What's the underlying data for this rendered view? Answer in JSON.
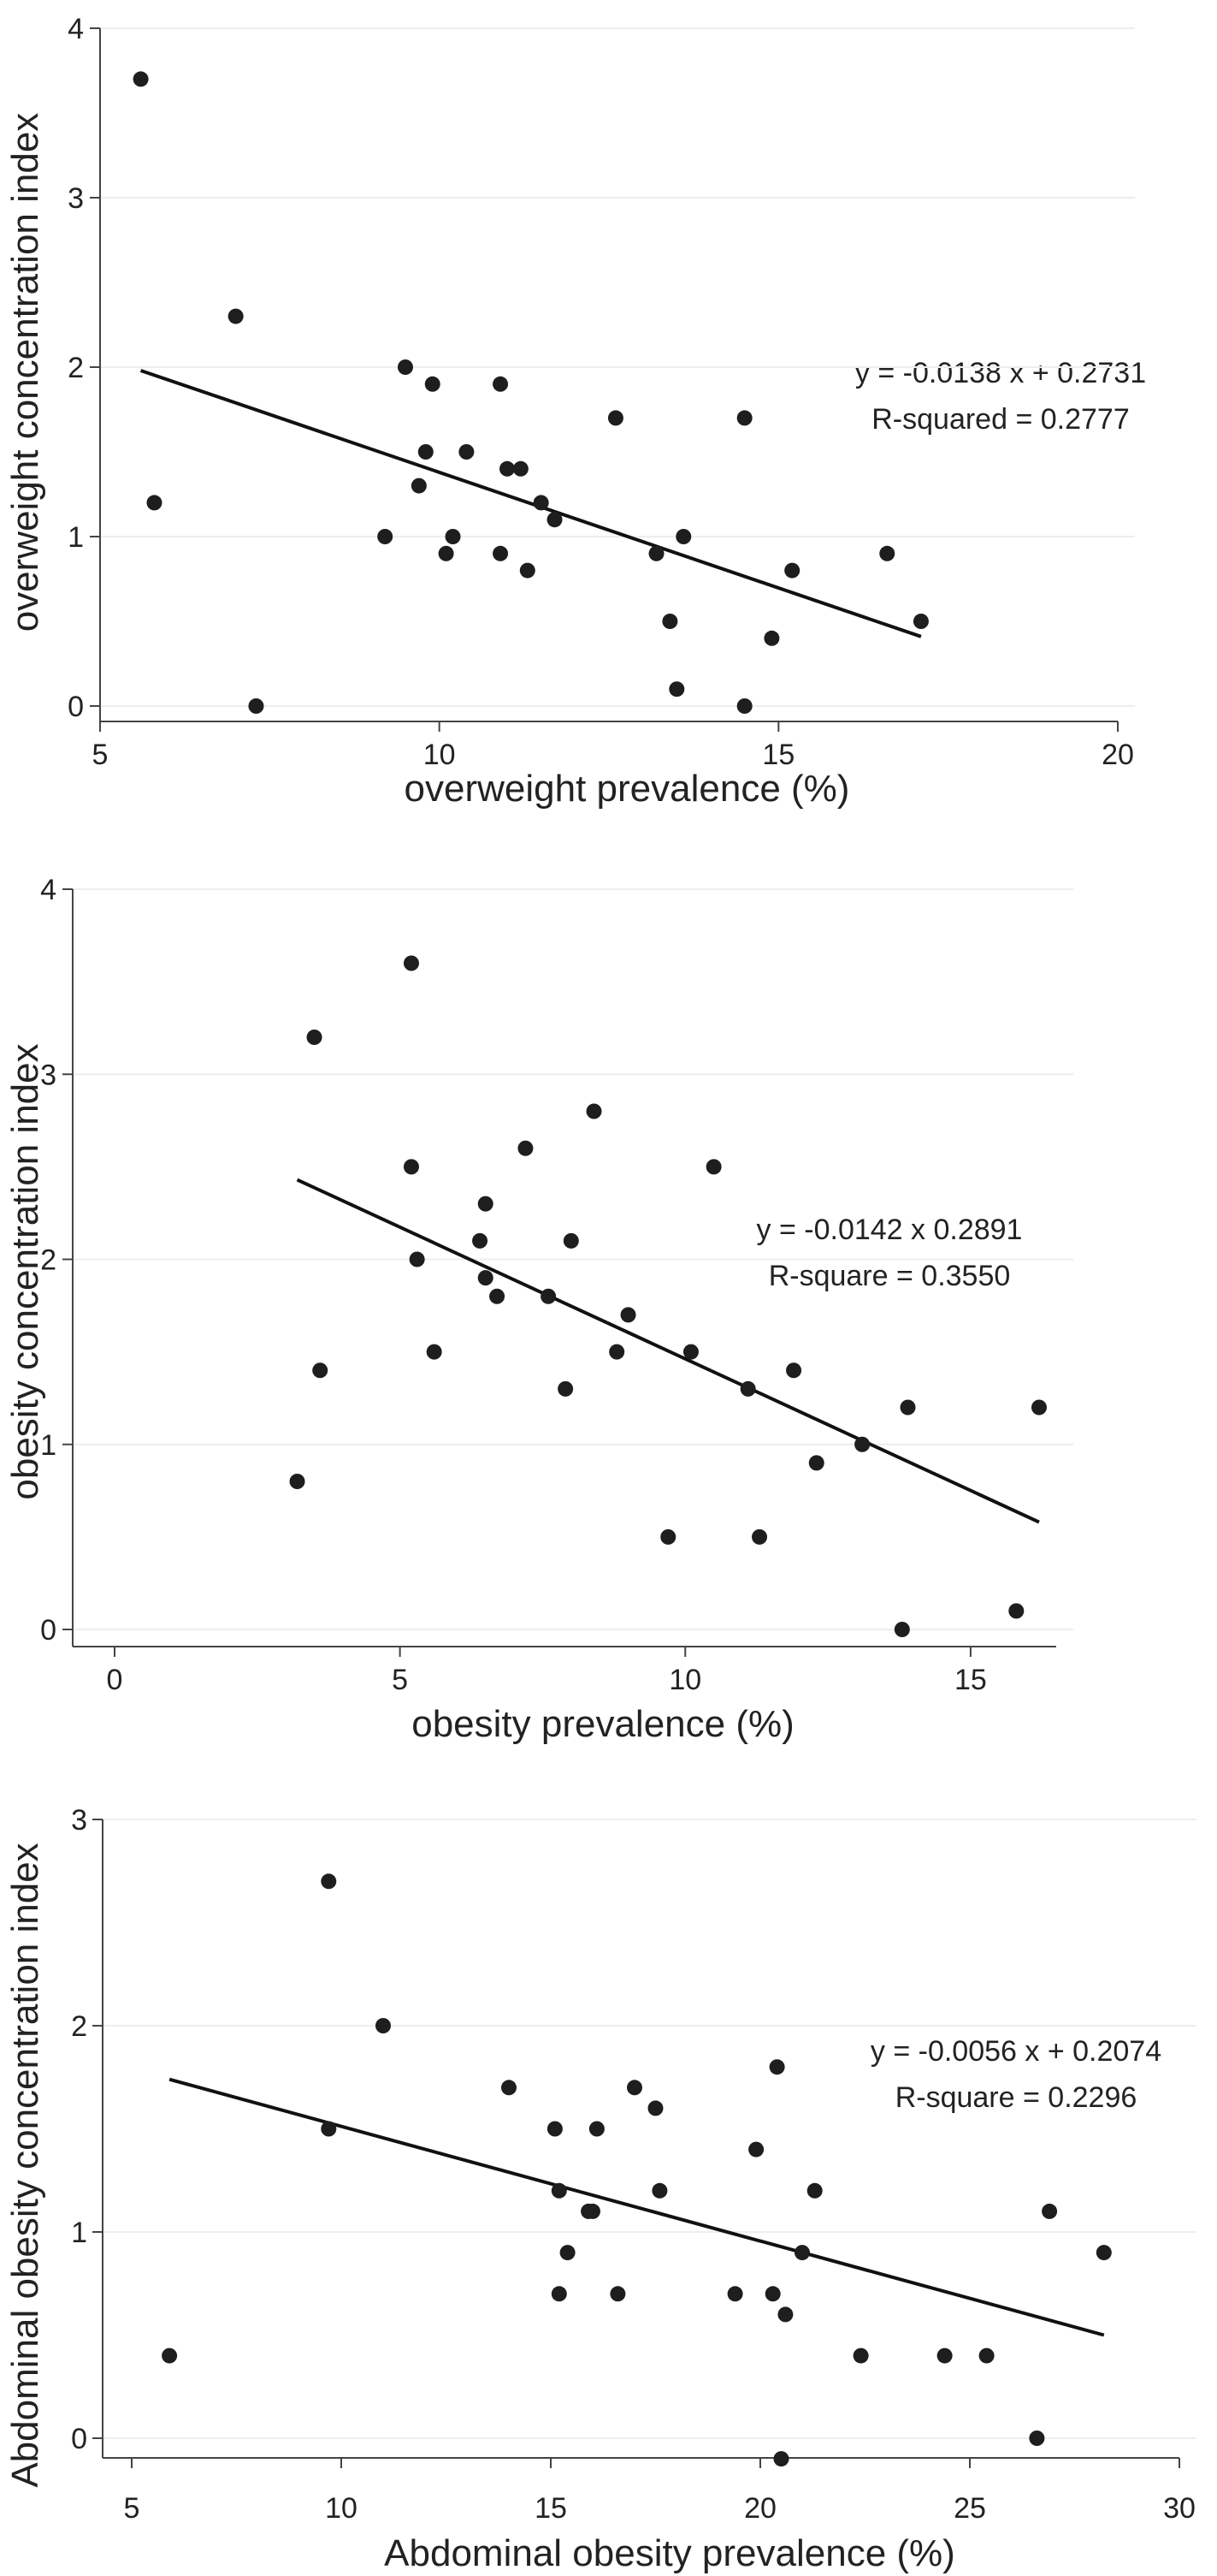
{
  "chart_data": [
    {
      "type": "scatter",
      "title": "",
      "xlabel": "overweight prevalence (%)",
      "ylabel": "overweight concentration index",
      "xlim": [
        5,
        20
      ],
      "ylim": [
        0,
        4
      ],
      "xticks": [
        5,
        10,
        15,
        20
      ],
      "yticks": [
        0,
        1,
        2,
        3,
        4
      ],
      "grid": true,
      "annotation_lines": [
        "y = -0.0138 x + 0.2731",
        "R-squared = 0.2777"
      ],
      "fit_line": {
        "x": [
          5.6,
          17.1
        ],
        "y": [
          1.98,
          0.41
        ]
      },
      "points": [
        {
          "x": 5.6,
          "y": 3.7
        },
        {
          "x": 5.8,
          "y": 1.2
        },
        {
          "x": 7.0,
          "y": 2.3
        },
        {
          "x": 7.3,
          "y": 0.0
        },
        {
          "x": 9.2,
          "y": 1.0
        },
        {
          "x": 9.5,
          "y": 2.0
        },
        {
          "x": 9.7,
          "y": 1.3
        },
        {
          "x": 9.8,
          "y": 1.5
        },
        {
          "x": 9.9,
          "y": 1.9
        },
        {
          "x": 10.1,
          "y": 0.9
        },
        {
          "x": 10.2,
          "y": 1.0
        },
        {
          "x": 10.4,
          "y": 1.5
        },
        {
          "x": 10.9,
          "y": 1.9
        },
        {
          "x": 10.9,
          "y": 0.9
        },
        {
          "x": 11.0,
          "y": 1.4
        },
        {
          "x": 11.2,
          "y": 1.4
        },
        {
          "x": 11.3,
          "y": 0.8
        },
        {
          "x": 11.5,
          "y": 1.2
        },
        {
          "x": 11.7,
          "y": 1.1
        },
        {
          "x": 12.6,
          "y": 1.7
        },
        {
          "x": 13.2,
          "y": 0.9
        },
        {
          "x": 13.4,
          "y": 0.5
        },
        {
          "x": 13.5,
          "y": 0.1
        },
        {
          "x": 13.6,
          "y": 1.0
        },
        {
          "x": 14.5,
          "y": 1.7
        },
        {
          "x": 14.5,
          "y": 0.0
        },
        {
          "x": 14.9,
          "y": 0.4
        },
        {
          "x": 15.2,
          "y": 0.8
        },
        {
          "x": 16.6,
          "y": 0.9
        },
        {
          "x": 17.1,
          "y": 0.5
        }
      ]
    },
    {
      "type": "scatter",
      "title": "",
      "xlabel": "obesity prevalence (%)",
      "ylabel": "obesity concentration index",
      "xlim": [
        0,
        16.5
      ],
      "ylim": [
        0,
        4
      ],
      "xticks": [
        0,
        5,
        10,
        15
      ],
      "yticks": [
        0,
        1,
        2,
        3,
        4
      ],
      "grid": true,
      "annotation_lines": [
        "y = -0.0142 x 0.2891",
        "R-square = 0.3550"
      ],
      "fit_line": {
        "x": [
          3.2,
          16.2
        ],
        "y": [
          2.43,
          0.58
        ]
      },
      "points": [
        {
          "x": 3.2,
          "y": 0.8
        },
        {
          "x": 3.5,
          "y": 3.2
        },
        {
          "x": 3.6,
          "y": 1.4
        },
        {
          "x": 5.2,
          "y": 3.6
        },
        {
          "x": 5.2,
          "y": 2.5
        },
        {
          "x": 5.3,
          "y": 2.0
        },
        {
          "x": 5.6,
          "y": 1.5
        },
        {
          "x": 6.4,
          "y": 2.1
        },
        {
          "x": 6.5,
          "y": 2.3
        },
        {
          "x": 6.5,
          "y": 1.9
        },
        {
          "x": 6.7,
          "y": 1.8
        },
        {
          "x": 7.2,
          "y": 2.6
        },
        {
          "x": 7.6,
          "y": 1.8
        },
        {
          "x": 7.9,
          "y": 1.3
        },
        {
          "x": 8.0,
          "y": 2.1
        },
        {
          "x": 8.4,
          "y": 2.8
        },
        {
          "x": 8.8,
          "y": 1.5
        },
        {
          "x": 9.0,
          "y": 1.7
        },
        {
          "x": 9.7,
          "y": 0.5
        },
        {
          "x": 10.1,
          "y": 1.5
        },
        {
          "x": 10.5,
          "y": 2.5
        },
        {
          "x": 11.1,
          "y": 1.3
        },
        {
          "x": 11.3,
          "y": 0.5
        },
        {
          "x": 11.9,
          "y": 1.4
        },
        {
          "x": 12.3,
          "y": 0.9
        },
        {
          "x": 13.1,
          "y": 1.0
        },
        {
          "x": 13.8,
          "y": 0.0
        },
        {
          "x": 13.9,
          "y": 1.2
        },
        {
          "x": 15.8,
          "y": 0.1
        },
        {
          "x": 16.2,
          "y": 1.2
        }
      ]
    },
    {
      "type": "scatter",
      "title": "",
      "xlabel": "Abdominal obesity prevalence (%)",
      "ylabel": "Abdominal obesity concentration index",
      "xlim": [
        5,
        30
      ],
      "ylim": [
        0,
        3
      ],
      "xticks": [
        5,
        10,
        15,
        20,
        25,
        30
      ],
      "yticks": [
        0,
        1,
        2,
        3
      ],
      "grid": true,
      "annotation_lines": [
        "y = -0.0056 x + 0.2074",
        "R-square = 0.2296"
      ],
      "fit_line": {
        "x": [
          5.9,
          28.2
        ],
        "y": [
          1.74,
          0.5
        ]
      },
      "points": [
        {
          "x": 5.9,
          "y": 0.4
        },
        {
          "x": 9.7,
          "y": 2.7
        },
        {
          "x": 9.7,
          "y": 1.5
        },
        {
          "x": 11.0,
          "y": 2.0
        },
        {
          "x": 14.0,
          "y": 1.7
        },
        {
          "x": 15.1,
          "y": 1.5
        },
        {
          "x": 15.2,
          "y": 1.2
        },
        {
          "x": 15.2,
          "y": 0.7
        },
        {
          "x": 15.4,
          "y": 0.9
        },
        {
          "x": 15.9,
          "y": 1.1
        },
        {
          "x": 16.0,
          "y": 1.1
        },
        {
          "x": 16.1,
          "y": 1.5
        },
        {
          "x": 16.6,
          "y": 0.7
        },
        {
          "x": 17.0,
          "y": 1.7
        },
        {
          "x": 17.5,
          "y": 1.6
        },
        {
          "x": 17.6,
          "y": 1.2
        },
        {
          "x": 19.4,
          "y": 0.7
        },
        {
          "x": 19.9,
          "y": 1.4
        },
        {
          "x": 20.3,
          "y": 0.7
        },
        {
          "x": 20.4,
          "y": 1.8
        },
        {
          "x": 20.5,
          "y": -0.1
        },
        {
          "x": 20.6,
          "y": 0.6
        },
        {
          "x": 21.0,
          "y": 0.9
        },
        {
          "x": 21.3,
          "y": 1.2
        },
        {
          "x": 22.4,
          "y": 0.4
        },
        {
          "x": 24.4,
          "y": 0.4
        },
        {
          "x": 25.4,
          "y": 0.4
        },
        {
          "x": 26.6,
          "y": 0.0
        },
        {
          "x": 26.9,
          "y": 1.1
        },
        {
          "x": 28.2,
          "y": 0.9
        }
      ]
    }
  ],
  "colors": {
    "point": "#1e1e1e",
    "fit_line": "#111111",
    "axis": "#444444",
    "grid": "#eeeeee",
    "text": "#222222"
  }
}
